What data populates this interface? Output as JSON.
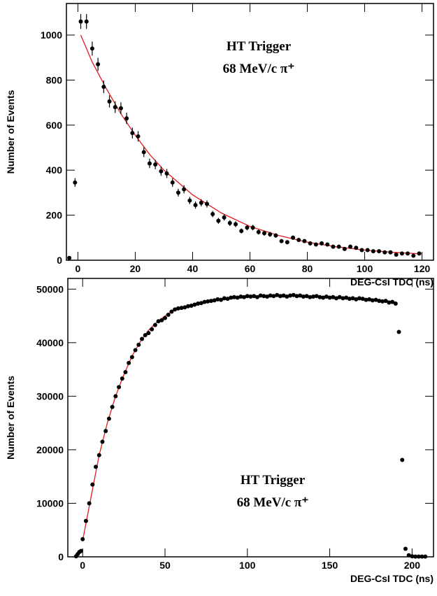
{
  "chart_data": [
    {
      "type": "scatter",
      "xlabel": "DEG-CsI TDC (ns)",
      "ylabel": "Number of Events",
      "annotations": [
        "HT Trigger",
        "68 MeV/c π⁺"
      ],
      "xlim": [
        -4,
        124
      ],
      "ylim": [
        0,
        1140
      ],
      "xticks": [
        0,
        20,
        40,
        60,
        80,
        100,
        120
      ],
      "yticks": [
        0,
        200,
        400,
        600,
        800,
        1000
      ],
      "color": "#000000",
      "fit_color": "#e31a1c",
      "x": [
        -3,
        -1,
        1,
        3,
        5,
        7,
        9,
        11,
        13,
        15,
        17,
        19,
        21,
        23,
        25,
        27,
        29,
        31,
        33,
        35,
        37,
        39,
        41,
        43,
        45,
        47,
        49,
        51,
        53,
        55,
        57,
        59,
        61,
        63,
        65,
        67,
        69,
        71,
        73,
        75,
        77,
        79,
        81,
        83,
        85,
        87,
        89,
        91,
        93,
        95,
        97,
        99,
        101,
        103,
        105,
        107,
        109,
        111,
        113,
        115,
        117,
        119
      ],
      "values": [
        10,
        345,
        1060,
        1060,
        940,
        870,
        770,
        705,
        680,
        675,
        630,
        565,
        550,
        480,
        430,
        425,
        395,
        385,
        345,
        300,
        315,
        265,
        245,
        255,
        250,
        205,
        175,
        190,
        165,
        160,
        130,
        145,
        145,
        125,
        120,
        115,
        110,
        85,
        80,
        100,
        90,
        85,
        75,
        70,
        75,
        70,
        60,
        60,
        50,
        60,
        55,
        45,
        45,
        40,
        40,
        35,
        35,
        25,
        30,
        30,
        20,
        30
      ],
      "errors": [
        3,
        19,
        33,
        33,
        31,
        29,
        28,
        27,
        26,
        26,
        25,
        24,
        23,
        22,
        21,
        21,
        20,
        20,
        19,
        17,
        18,
        16,
        16,
        16,
        16,
        14,
        13,
        14,
        13,
        13,
        11,
        12,
        12,
        11,
        11,
        11,
        10,
        9,
        9,
        10,
        9,
        9,
        9,
        8,
        9,
        8,
        8,
        8,
        7,
        8,
        7,
        7,
        7,
        6,
        6,
        6,
        6,
        5,
        5,
        5,
        4,
        5
      ],
      "fit_x": [
        1,
        5,
        10,
        15,
        20,
        25,
        30,
        40,
        50,
        60,
        70,
        80,
        90,
        100,
        110,
        120
      ],
      "fit_values": [
        1000,
        880,
        760,
        650,
        555,
        470,
        400,
        290,
        210,
        150,
        110,
        80,
        60,
        45,
        35,
        28
      ]
    },
    {
      "type": "scatter",
      "xlabel": "DEG-CsI TDC (ns)",
      "ylabel": "Number of Events",
      "annotations": [
        "HT Trigger",
        "68 MeV/c π⁺"
      ],
      "xlim": [
        -9,
        213
      ],
      "ylim": [
        0,
        52000
      ],
      "xticks": [
        0,
        50,
        100,
        150,
        200
      ],
      "yticks": [
        0,
        10000,
        20000,
        30000,
        40000,
        50000
      ],
      "color": "#000000",
      "fit_color": "#e31a1c",
      "x": [
        -4,
        -3,
        -2,
        -1,
        0,
        2,
        4,
        6,
        8,
        10,
        12,
        14,
        16,
        18,
        20,
        22,
        24,
        26,
        28,
        30,
        32,
        34,
        36,
        38,
        40,
        42,
        44,
        46,
        48,
        50,
        52,
        54,
        56,
        58,
        60,
        62,
        64,
        66,
        68,
        70,
        72,
        74,
        76,
        78,
        80,
        82,
        84,
        86,
        88,
        90,
        92,
        94,
        96,
        98,
        100,
        102,
        104,
        106,
        108,
        110,
        112,
        114,
        116,
        118,
        120,
        122,
        124,
        126,
        128,
        130,
        132,
        134,
        136,
        138,
        140,
        142,
        144,
        146,
        148,
        150,
        152,
        154,
        156,
        158,
        160,
        162,
        164,
        166,
        168,
        170,
        172,
        174,
        176,
        178,
        180,
        182,
        184,
        186,
        188,
        190,
        192,
        194,
        196,
        198,
        200,
        202,
        204,
        206,
        208
      ],
      "values": [
        100,
        500,
        900,
        1100,
        3300,
        6700,
        10000,
        13500,
        16800,
        19000,
        21500,
        23500,
        25800,
        28000,
        30000,
        31700,
        33300,
        34500,
        36200,
        37300,
        38600,
        39600,
        40700,
        41400,
        41800,
        42500,
        43300,
        44000,
        44200,
        44600,
        45200,
        45800,
        46200,
        46400,
        46500,
        46600,
        46800,
        46900,
        47100,
        47300,
        47400,
        47600,
        47700,
        47800,
        47900,
        48100,
        48000,
        48300,
        48200,
        48400,
        48500,
        48400,
        48600,
        48500,
        48700,
        48600,
        48700,
        48500,
        48800,
        48700,
        48600,
        48800,
        48700,
        48900,
        48700,
        48800,
        48600,
        48800,
        48900,
        48700,
        48800,
        48600,
        48700,
        48500,
        48600,
        48700,
        48500,
        48400,
        48600,
        48400,
        48500,
        48300,
        48500,
        48300,
        48400,
        48200,
        48300,
        48100,
        48300,
        48200,
        48000,
        48100,
        47900,
        48000,
        47800,
        47700,
        47800,
        47500,
        47600,
        47300,
        42000,
        18100,
        1500,
        300,
        100,
        50,
        50,
        50,
        50
      ],
      "fit_x": [
        0,
        5,
        10,
        15,
        20,
        25,
        30,
        35,
        40,
        45,
        50,
        55,
        60,
        70,
        80,
        100,
        120,
        140,
        160,
        180,
        190
      ],
      "fit_values": [
        3000,
        11000,
        19000,
        25000,
        30000,
        34000,
        37500,
        40200,
        42300,
        43800,
        45000,
        46000,
        46500,
        47300,
        47900,
        48500,
        48800,
        48700,
        48400,
        48000,
        47600
      ]
    }
  ]
}
